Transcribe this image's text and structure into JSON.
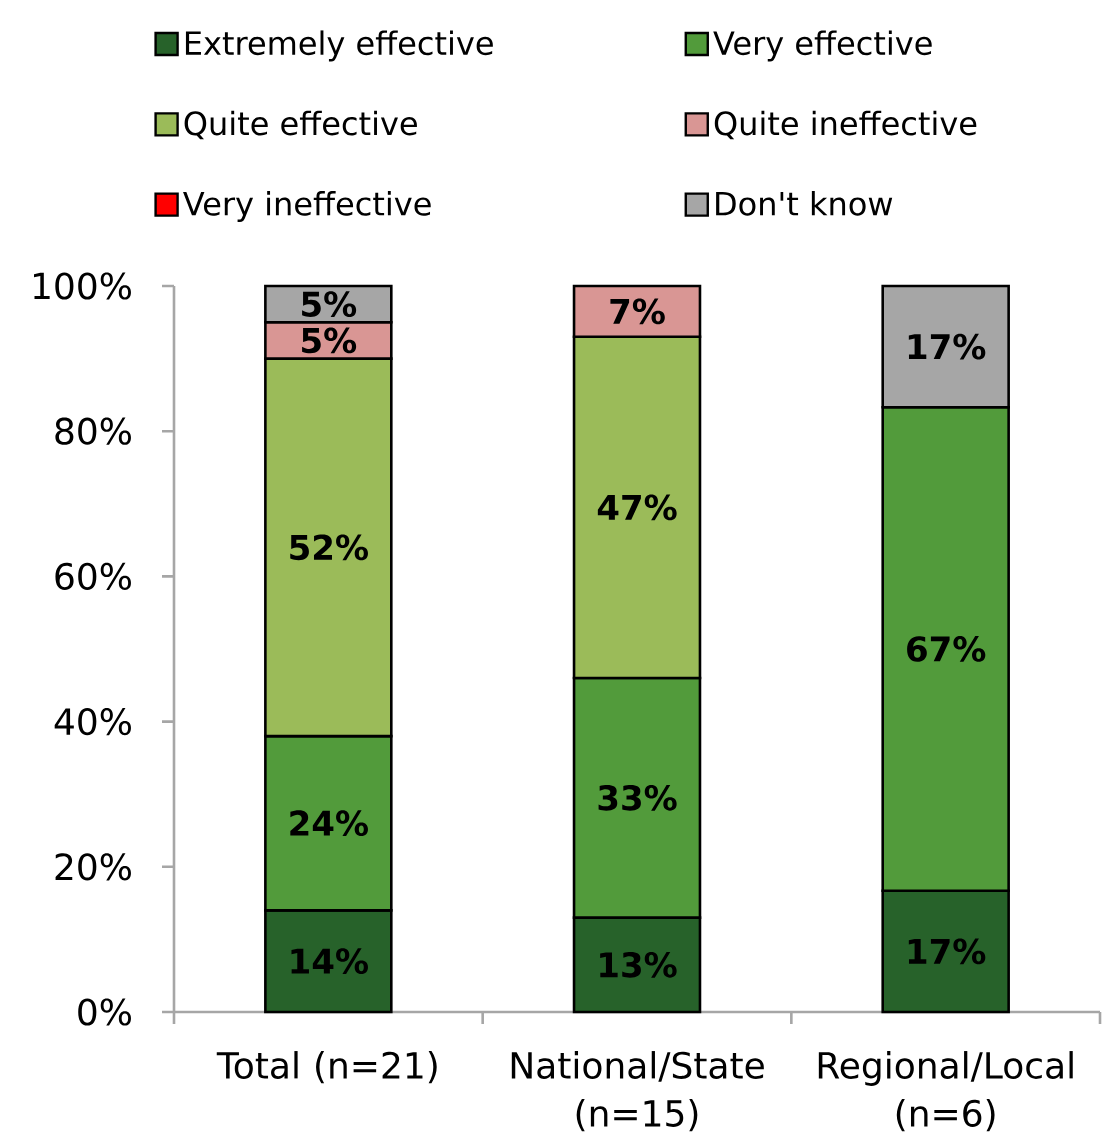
{
  "chart_data": {
    "type": "bar",
    "stacked": true,
    "categories": [
      "Total (n=21)",
      "National/State (n=15)",
      "Regional/Local (n=6)"
    ],
    "series": [
      {
        "name": "Extremely effective",
        "color": "#27622a",
        "values": [
          14,
          13,
          16.7
        ],
        "value_labels": [
          "14%",
          "13%",
          "17%"
        ]
      },
      {
        "name": "Very effective",
        "color": "#529b3b",
        "values": [
          24,
          33,
          66.6
        ],
        "value_labels": [
          "24%",
          "33%",
          "67%"
        ]
      },
      {
        "name": "Quite effective",
        "color": "#9bbb59",
        "values": [
          52,
          47,
          0
        ],
        "value_labels": [
          "52%",
          "47%",
          null
        ]
      },
      {
        "name": "Quite ineffective",
        "color": "#d99694",
        "values": [
          5,
          7,
          0
        ],
        "value_labels": [
          "5%",
          "7%",
          null
        ]
      },
      {
        "name": "Very ineffective",
        "color": "#ff0000",
        "values": [
          0,
          0,
          0
        ],
        "value_labels": [
          null,
          null,
          null
        ]
      },
      {
        "name": "Don't know",
        "color": "#a6a6a6",
        "values": [
          5,
          0,
          16.7
        ],
        "value_labels": [
          "5%",
          null,
          "17%"
        ]
      }
    ],
    "ylim": [
      0,
      100
    ],
    "yticks": [
      {
        "value": 0,
        "label": "0%"
      },
      {
        "value": 20,
        "label": "20%"
      },
      {
        "value": 40,
        "label": "40%"
      },
      {
        "value": 60,
        "label": "60%"
      },
      {
        "value": 80,
        "label": "80%"
      },
      {
        "value": 100,
        "label": "100%"
      }
    ],
    "legend": "top"
  }
}
